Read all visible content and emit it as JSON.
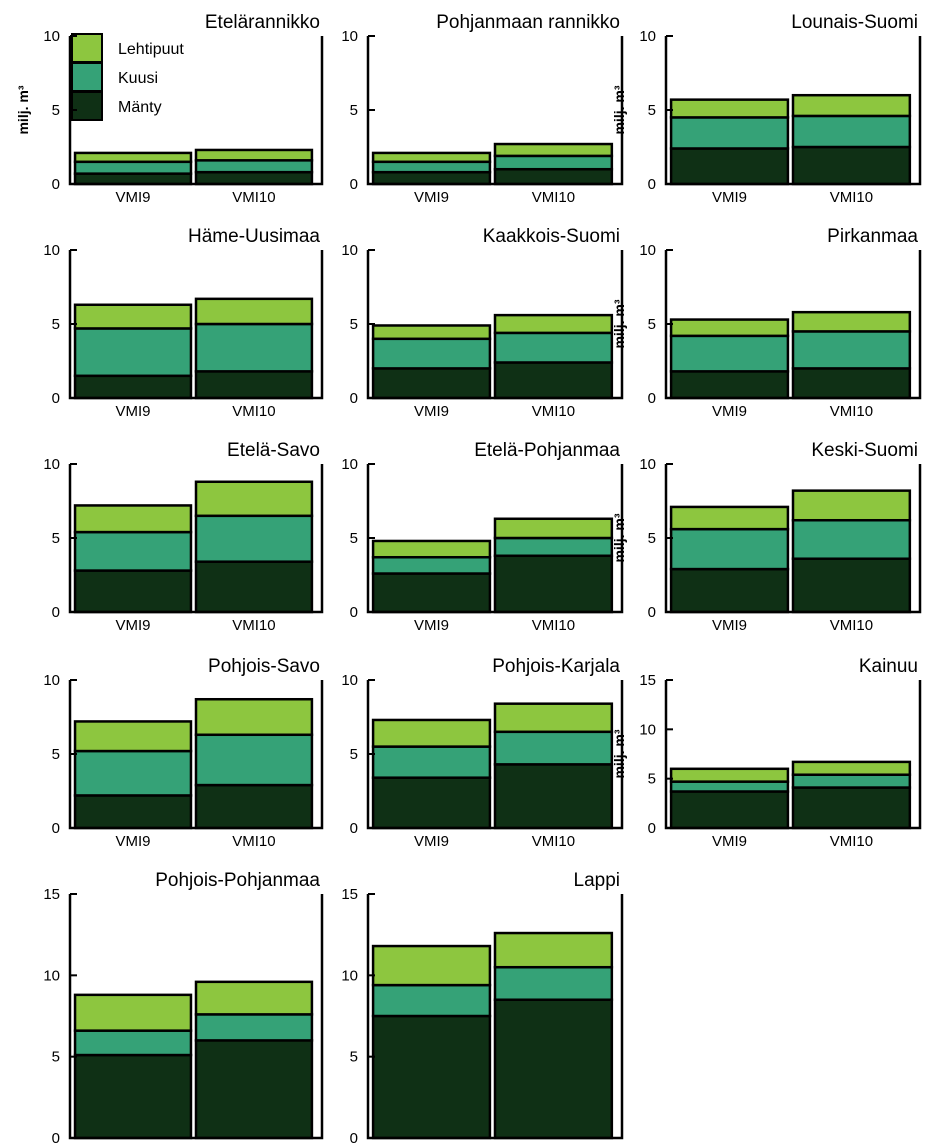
{
  "legend": [
    {
      "label": "Lehtipuut",
      "color": "#8dc63f"
    },
    {
      "label": "Kuusi",
      "color": "#35a277"
    },
    {
      "label": "Mänty",
      "color": "#0f3015"
    }
  ],
  "chart_data": [
    {
      "type": "bar",
      "stacked": true,
      "title": "Etelärannikko",
      "ylabel": "milj. m³",
      "ylim": [
        0,
        10
      ],
      "yticks": [
        0,
        5,
        10
      ],
      "categories": [
        "VMI9",
        "VMI10"
      ],
      "series": [
        {
          "name": "Mänty",
          "values": [
            0.7,
            0.8
          ]
        },
        {
          "name": "Kuusi",
          "values": [
            0.8,
            0.8
          ]
        },
        {
          "name": "Lehtipuut",
          "values": [
            0.6,
            0.7
          ]
        }
      ]
    },
    {
      "type": "bar",
      "stacked": true,
      "title": "Pohjanmaan rannikko",
      "ylabel": "",
      "ylim": [
        0,
        10
      ],
      "yticks": [
        0,
        5,
        10
      ],
      "categories": [
        "VMI9",
        "VMI10"
      ],
      "series": [
        {
          "name": "Mänty",
          "values": [
            0.8,
            1.0
          ]
        },
        {
          "name": "Kuusi",
          "values": [
            0.7,
            0.9
          ]
        },
        {
          "name": "Lehtipuut",
          "values": [
            0.6,
            0.8
          ]
        }
      ]
    },
    {
      "type": "bar",
      "stacked": true,
      "title": "Lounais-Suomi",
      "ylabel": "milj. m³",
      "ylim": [
        0,
        10
      ],
      "yticks": [
        0,
        5,
        10
      ],
      "categories": [
        "VMI9",
        "VMI10"
      ],
      "series": [
        {
          "name": "Mänty",
          "values": [
            2.4,
            2.5
          ]
        },
        {
          "name": "Kuusi",
          "values": [
            2.1,
            2.1
          ]
        },
        {
          "name": "Lehtipuut",
          "values": [
            1.2,
            1.4
          ]
        }
      ]
    },
    {
      "type": "bar",
      "stacked": true,
      "title": "Häme-Uusimaa",
      "ylabel": "",
      "ylim": [
        0,
        10
      ],
      "yticks": [
        0,
        5,
        10
      ],
      "categories": [
        "VMI9",
        "VMI10"
      ],
      "series": [
        {
          "name": "Mänty",
          "values": [
            1.5,
            1.8
          ]
        },
        {
          "name": "Kuusi",
          "values": [
            3.2,
            3.2
          ]
        },
        {
          "name": "Lehtipuut",
          "values": [
            1.6,
            1.7
          ]
        }
      ]
    },
    {
      "type": "bar",
      "stacked": true,
      "title": "Kaakkois-Suomi",
      "ylabel": "",
      "ylim": [
        0,
        10
      ],
      "yticks": [
        0,
        5,
        10
      ],
      "categories": [
        "VMI9",
        "VMI10"
      ],
      "series": [
        {
          "name": "Mänty",
          "values": [
            2.0,
            2.4
          ]
        },
        {
          "name": "Kuusi",
          "values": [
            2.0,
            2.0
          ]
        },
        {
          "name": "Lehtipuut",
          "values": [
            0.9,
            1.2
          ]
        }
      ]
    },
    {
      "type": "bar",
      "stacked": true,
      "title": "Pirkanmaa",
      "ylabel": "milj. m³",
      "ylim": [
        0,
        10
      ],
      "yticks": [
        0,
        5,
        10
      ],
      "categories": [
        "VMI9",
        "VMI10"
      ],
      "series": [
        {
          "name": "Mänty",
          "values": [
            1.8,
            2.0
          ]
        },
        {
          "name": "Kuusi",
          "values": [
            2.4,
            2.5
          ]
        },
        {
          "name": "Lehtipuut",
          "values": [
            1.1,
            1.3
          ]
        }
      ]
    },
    {
      "type": "bar",
      "stacked": true,
      "title": "Etelä-Savo",
      "ylabel": "",
      "ylim": [
        0,
        10
      ],
      "yticks": [
        0,
        5,
        10
      ],
      "categories": [
        "VMI9",
        "VMI10"
      ],
      "series": [
        {
          "name": "Mänty",
          "values": [
            2.8,
            3.4
          ]
        },
        {
          "name": "Kuusi",
          "values": [
            2.6,
            3.1
          ]
        },
        {
          "name": "Lehtipuut",
          "values": [
            1.8,
            2.3
          ]
        }
      ]
    },
    {
      "type": "bar",
      "stacked": true,
      "title": "Etelä-Pohjanmaa",
      "ylabel": "",
      "ylim": [
        0,
        10
      ],
      "yticks": [
        0,
        5,
        10
      ],
      "categories": [
        "VMI9",
        "VMI10"
      ],
      "series": [
        {
          "name": "Mänty",
          "values": [
            2.6,
            3.8
          ]
        },
        {
          "name": "Kuusi",
          "values": [
            1.1,
            1.2
          ]
        },
        {
          "name": "Lehtipuut",
          "values": [
            1.1,
            1.3
          ]
        }
      ]
    },
    {
      "type": "bar",
      "stacked": true,
      "title": "Keski-Suomi",
      "ylabel": "milj. m³",
      "ylim": [
        0,
        10
      ],
      "yticks": [
        0,
        5,
        10
      ],
      "categories": [
        "VMI9",
        "VMI10"
      ],
      "series": [
        {
          "name": "Mänty",
          "values": [
            2.9,
            3.6
          ]
        },
        {
          "name": "Kuusi",
          "values": [
            2.7,
            2.6
          ]
        },
        {
          "name": "Lehtipuut",
          "values": [
            1.5,
            2.0
          ]
        }
      ]
    },
    {
      "type": "bar",
      "stacked": true,
      "title": "Pohjois-Savo",
      "ylabel": "",
      "ylim": [
        0,
        10
      ],
      "yticks": [
        0,
        5,
        10
      ],
      "categories": [
        "VMI9",
        "VMI10"
      ],
      "series": [
        {
          "name": "Mänty",
          "values": [
            2.2,
            2.9
          ]
        },
        {
          "name": "Kuusi",
          "values": [
            3.0,
            3.4
          ]
        },
        {
          "name": "Lehtipuut",
          "values": [
            2.0,
            2.4
          ]
        }
      ]
    },
    {
      "type": "bar",
      "stacked": true,
      "title": "Pohjois-Karjala",
      "ylabel": "",
      "ylim": [
        0,
        10
      ],
      "yticks": [
        0,
        5,
        10
      ],
      "categories": [
        "VMI9",
        "VMI10"
      ],
      "series": [
        {
          "name": "Mänty",
          "values": [
            3.4,
            4.3
          ]
        },
        {
          "name": "Kuusi",
          "values": [
            2.1,
            2.2
          ]
        },
        {
          "name": "Lehtipuut",
          "values": [
            1.8,
            1.9
          ]
        }
      ]
    },
    {
      "type": "bar",
      "stacked": true,
      "title": "Kainuu",
      "ylabel": "milj. m³",
      "ylim": [
        0,
        15
      ],
      "yticks": [
        0,
        5,
        10,
        15
      ],
      "categories": [
        "VMI9",
        "VMI10"
      ],
      "series": [
        {
          "name": "Mänty",
          "values": [
            3.7,
            4.1
          ]
        },
        {
          "name": "Kuusi",
          "values": [
            1.0,
            1.3
          ]
        },
        {
          "name": "Lehtipuut",
          "values": [
            1.3,
            1.3
          ]
        }
      ]
    },
    {
      "type": "bar",
      "stacked": true,
      "title": "Pohjois-Pohjanmaa",
      "ylabel": "",
      "ylim": [
        0,
        15
      ],
      "yticks": [
        0,
        5,
        10,
        15
      ],
      "categories": [
        "VMI9",
        "VMI10"
      ],
      "series": [
        {
          "name": "Mänty",
          "values": [
            5.1,
            6.0
          ]
        },
        {
          "name": "Kuusi",
          "values": [
            1.5,
            1.6
          ]
        },
        {
          "name": "Lehtipuut",
          "values": [
            2.2,
            2.0
          ]
        }
      ]
    },
    {
      "type": "bar",
      "stacked": true,
      "title": "Lappi",
      "ylabel": "",
      "ylim": [
        0,
        15
      ],
      "yticks": [
        0,
        5,
        10,
        15
      ],
      "categories": [
        "VMI9",
        "VMI10"
      ],
      "series": [
        {
          "name": "Mänty",
          "values": [
            7.5,
            8.5
          ]
        },
        {
          "name": "Kuusi",
          "values": [
            1.9,
            2.0
          ]
        },
        {
          "name": "Lehtipuut",
          "values": [
            2.4,
            2.1
          ]
        }
      ]
    }
  ]
}
